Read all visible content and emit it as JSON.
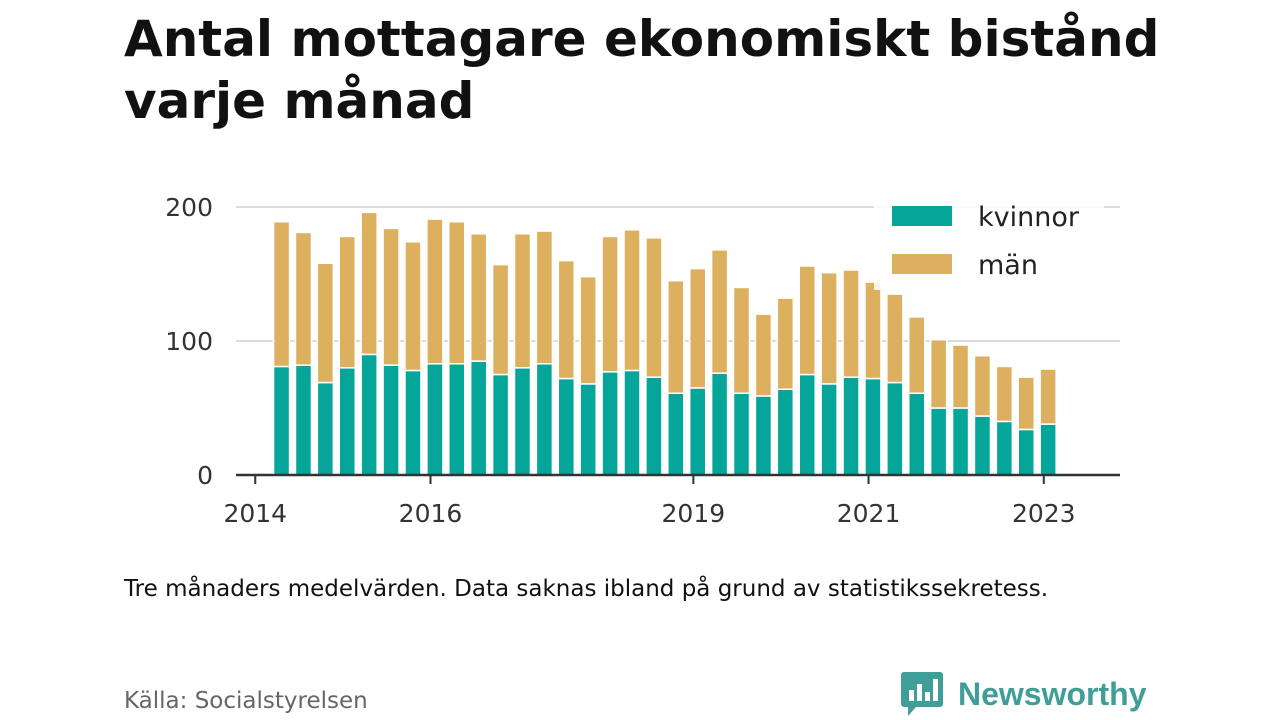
{
  "title": "Antal mottagare ekonomiskt bistånd varje månad",
  "note": "Tre månaders medelvärden. Data saknas ibland på grund av statistikssekretess.",
  "source": "Källa: Socialstyrelsen",
  "brand": "Newsworthy",
  "colors": {
    "kvinnor": "#05a59a",
    "man": "#dcb05e",
    "brand": "#3f9e98"
  },
  "chart_data": {
    "type": "bar",
    "stacked": true,
    "ylim": [
      0,
      200
    ],
    "yticks": [
      0,
      100,
      200
    ],
    "xticks": [
      {
        "label": "2014",
        "x": 2014.0
      },
      {
        "label": "2016",
        "x": 2016.0
      },
      {
        "label": "2019",
        "x": 2019.0
      },
      {
        "label": "2021",
        "x": 2021.0
      },
      {
        "label": "2023",
        "x": 2023.0
      }
    ],
    "xlim": [
      2013.78,
      2023.87
    ],
    "grid": true,
    "legend": "top-right",
    "x": [
      2014.3,
      2014.55,
      2014.8,
      2015.05,
      2015.3,
      2015.55,
      2015.8,
      2016.05,
      2016.3,
      2016.55,
      2016.8,
      2017.05,
      2017.3,
      2017.55,
      2017.8,
      2018.05,
      2018.3,
      2018.55,
      2018.8,
      2019.05,
      2019.3,
      2019.55,
      2019.8,
      2020.05,
      2020.3,
      2020.55,
      2020.8,
      2021.05,
      2021.3,
      2021.55,
      2021.8,
      2022.05,
      2022.3,
      2022.55,
      2022.8,
      2023.05
    ],
    "series": [
      {
        "name": "kvinnor",
        "color": "#05a59a",
        "values": [
          81,
          82,
          69,
          80,
          90,
          82,
          78,
          83,
          83,
          85,
          75,
          80,
          83,
          72,
          68,
          77,
          78,
          73,
          61,
          65,
          76,
          61,
          59,
          64,
          75,
          68,
          73,
          72,
          69,
          61,
          50,
          50,
          44,
          40,
          34,
          38
        ]
      },
      {
        "name": "män",
        "color": "#dcb05e",
        "values": [
          108,
          99,
          89,
          98,
          106,
          102,
          96,
          108,
          106,
          95,
          82,
          100,
          99,
          88,
          80,
          101,
          105,
          104,
          84,
          89,
          92,
          79,
          61,
          68,
          81,
          83,
          80,
          72,
          66,
          57,
          51,
          47,
          45,
          41,
          39,
          41
        ]
      }
    ]
  }
}
